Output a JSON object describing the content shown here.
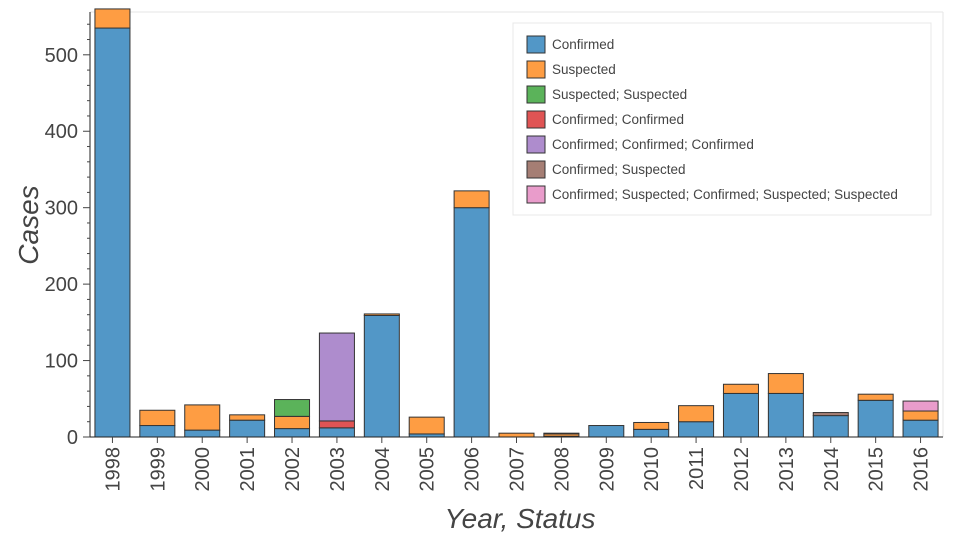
{
  "chart_data": {
    "type": "bar",
    "stacked": true,
    "title": "",
    "xlabel": "Year, Status",
    "ylabel": "Cases",
    "ylim": [
      0,
      556
    ],
    "yticks": [
      0,
      100,
      200,
      300,
      400,
      500
    ],
    "grid": false,
    "legend_position": "top-right",
    "categories": [
      "1998",
      "1999",
      "2000",
      "2001",
      "2002",
      "2003",
      "2004",
      "2005",
      "2006",
      "2007",
      "2008",
      "2009",
      "2010",
      "2011",
      "2012",
      "2013",
      "2014",
      "2015",
      "2016"
    ],
    "series": [
      {
        "name": "Confirmed",
        "color": "#5297c7",
        "values": [
          535,
          15,
          9,
          22,
          11,
          12,
          159,
          4,
          300,
          0,
          1,
          15,
          10,
          20,
          57,
          57,
          28,
          48,
          22
        ]
      },
      {
        "name": "Suspected",
        "color": "#fe9d43",
        "values": [
          25,
          20,
          33,
          7,
          16,
          0,
          2,
          22,
          22,
          5,
          3,
          0,
          9,
          21,
          12,
          26,
          0,
          8,
          12
        ]
      },
      {
        "name": "Suspected; Suspected",
        "color": "#5bb35a",
        "values": [
          0,
          0,
          0,
          0,
          22,
          0,
          0,
          0,
          0,
          0,
          0,
          0,
          0,
          0,
          0,
          0,
          0,
          0,
          0
        ]
      },
      {
        "name": "Confirmed; Confirmed",
        "color": "#e05454",
        "values": [
          0,
          0,
          0,
          0,
          0,
          9,
          0,
          0,
          0,
          0,
          0,
          0,
          0,
          0,
          0,
          0,
          0,
          0,
          0
        ]
      },
      {
        "name": "Confirmed; Confirmed; Confirmed",
        "color": "#ae8ccd",
        "values": [
          0,
          0,
          0,
          0,
          0,
          115,
          0,
          0,
          0,
          0,
          0,
          0,
          0,
          0,
          0,
          0,
          0,
          0,
          0
        ]
      },
      {
        "name": "Confirmed; Suspected",
        "color": "#a57e74",
        "values": [
          0,
          0,
          0,
          0,
          0,
          0,
          0,
          0,
          0,
          0,
          1,
          0,
          0,
          0,
          0,
          0,
          4,
          0,
          0
        ]
      },
      {
        "name": "Confirmed; Suspected; Confirmed; Suspected; Suspected",
        "color": "#e99ccb",
        "values": [
          0,
          0,
          0,
          0,
          0,
          0,
          0,
          0,
          0,
          0,
          0,
          0,
          0,
          0,
          0,
          0,
          0,
          0,
          13
        ]
      }
    ]
  }
}
